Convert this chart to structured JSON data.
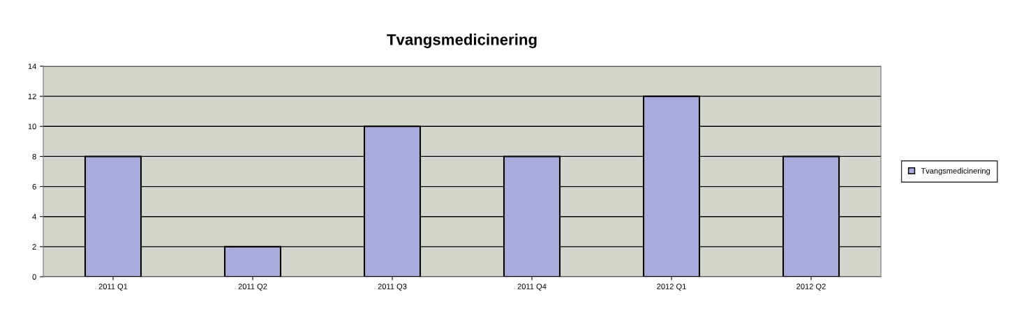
{
  "chart_data": {
    "type": "bar",
    "title": "Tvangsmedicinering",
    "categories": [
      "2011 Q1",
      "2011 Q2",
      "2011 Q3",
      "2011 Q4",
      "2012 Q1",
      "2012 Q2"
    ],
    "series": [
      {
        "name": "Tvangsmedicinering",
        "color": "#a9acdb",
        "values": [
          8,
          2,
          10,
          8,
          12,
          8
        ]
      }
    ],
    "ylim": [
      0,
      14
    ],
    "yticks": [
      0,
      2,
      4,
      6,
      8,
      10,
      12,
      14
    ],
    "grid": "y",
    "legend": "right"
  }
}
